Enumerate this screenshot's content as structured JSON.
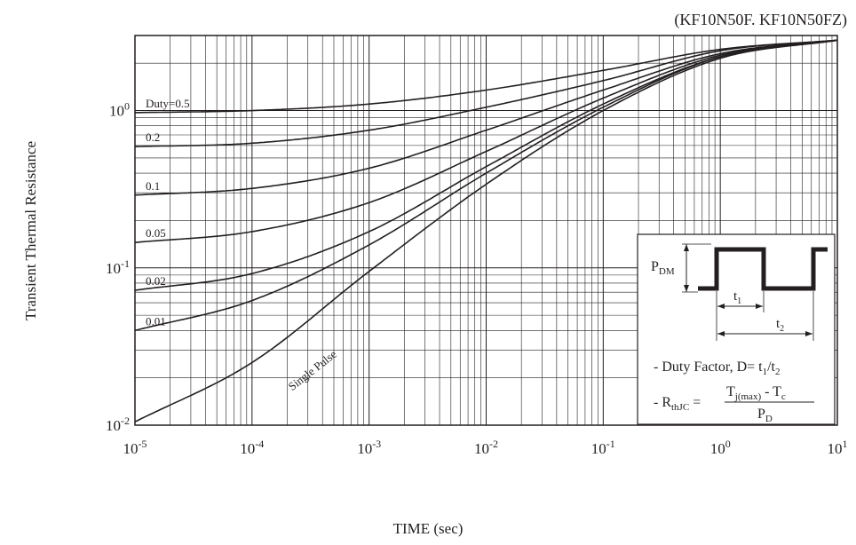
{
  "chart_data": {
    "type": "line",
    "title": "(KF10N50F. KF10N50FZ)",
    "xlabel": "TIME (sec)",
    "ylabel": "Transient Thermal Resistance",
    "x_scale": "log",
    "y_scale": "log",
    "xlim": [
      1e-05,
      10
    ],
    "ylim": [
      0.01,
      3
    ],
    "grid": true,
    "x_ticks": [
      {
        "value": 1e-05,
        "base": "10",
        "exp": "-5"
      },
      {
        "value": 0.0001,
        "base": "10",
        "exp": "-4"
      },
      {
        "value": 0.001,
        "base": "10",
        "exp": "-3"
      },
      {
        "value": 0.01,
        "base": "10",
        "exp": "-2"
      },
      {
        "value": 0.1,
        "base": "10",
        "exp": "-1"
      },
      {
        "value": 1,
        "base": "10",
        "exp": "0"
      },
      {
        "value": 10,
        "base": "10",
        "exp": "1"
      }
    ],
    "y_ticks": [
      {
        "value": 0.01,
        "base": "10",
        "exp": "-2"
      },
      {
        "value": 0.1,
        "base": "10",
        "exp": "-1"
      },
      {
        "value": 1,
        "base": "10",
        "exp": "0"
      }
    ],
    "x": [
      1e-05,
      0.0001,
      0.001,
      0.01,
      0.1,
      1,
      10
    ],
    "series": [
      {
        "name": "Duty=0.5",
        "values": [
          0.97,
          1.0,
          1.1,
          1.35,
          1.8,
          2.45,
          2.8
        ]
      },
      {
        "name": "0.2",
        "values": [
          0.59,
          0.62,
          0.75,
          1.05,
          1.55,
          2.4,
          2.8
        ]
      },
      {
        "name": "0.1",
        "values": [
          0.29,
          0.32,
          0.43,
          0.75,
          1.35,
          2.3,
          2.8
        ]
      },
      {
        "name": "0.05",
        "values": [
          0.145,
          0.17,
          0.26,
          0.55,
          1.2,
          2.25,
          2.8
        ]
      },
      {
        "name": "0.02",
        "values": [
          0.072,
          0.092,
          0.17,
          0.44,
          1.1,
          2.2,
          2.8
        ]
      },
      {
        "name": "0.01",
        "values": [
          0.04,
          0.062,
          0.14,
          0.4,
          1.05,
          2.2,
          2.8
        ]
      },
      {
        "name": "Single Pulse",
        "values": [
          0.0105,
          0.025,
          0.095,
          0.34,
          1.0,
          2.15,
          2.8
        ]
      }
    ],
    "inset": {
      "pdm_main": "P",
      "pdm_sub": "DM",
      "t1_main": "t",
      "t1_sub": "1",
      "t2_main": "t",
      "t2_sub": "2",
      "duty_prefix": "- Duty Factor, D= t",
      "duty_sub1": "1",
      "duty_slash": "/t",
      "duty_sub2": "2",
      "r_prefix": "- R",
      "r_sub": "thJC",
      "r_eq": " =",
      "num_t": "T",
      "num_sub": "j(max)",
      "num_rest": " - T",
      "num_sub2": "c",
      "den_main": "P",
      "den_sub": "D"
    }
  }
}
